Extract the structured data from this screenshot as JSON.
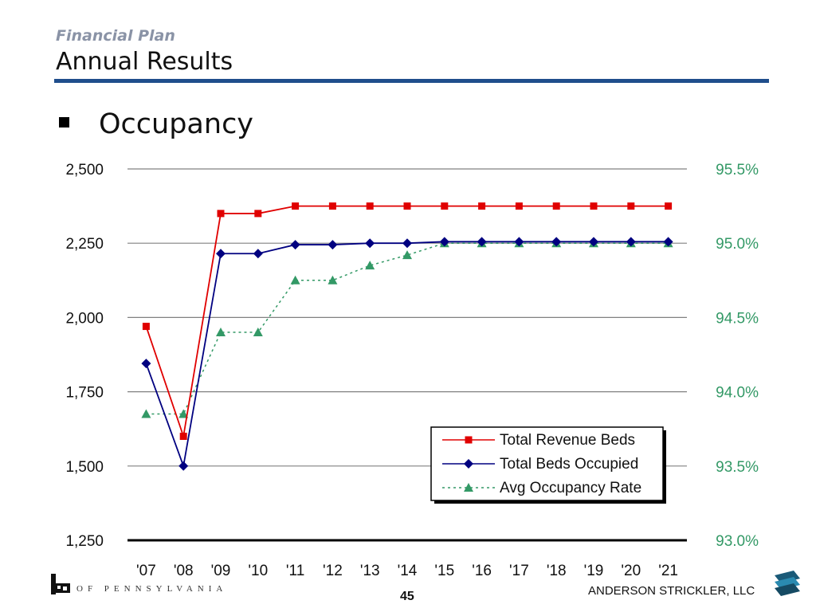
{
  "header": {
    "subtitle": "Financial Plan",
    "title": "Annual Results",
    "bullet_heading": "Occupancy"
  },
  "footer": {
    "left_text": "OF PENNSYLVANIA",
    "page_number": "45",
    "firm": "ANDERSON STRICKLER, LLC"
  },
  "colors": {
    "title_rule": "#1f4e8c",
    "revenue": "#e00000",
    "occupied": "#000080",
    "occupancy": "#339966",
    "right_axis_text": "#339966"
  },
  "chart_data": {
    "type": "line",
    "categories": [
      "'07",
      "'08",
      "'09",
      "'10",
      "'11",
      "'12",
      "'13",
      "'14",
      "'15",
      "'16",
      "'17",
      "'18",
      "'19",
      "'20",
      "'21"
    ],
    "y_left": {
      "min": 1250,
      "max": 2500,
      "ticks": [
        "2,500",
        "2,250",
        "2,000",
        "1,750",
        "1,500",
        "1,250"
      ]
    },
    "y_right": {
      "min": 93.0,
      "max": 95.5,
      "ticks": [
        "95.5%",
        "95.0%",
        "94.5%",
        "94.0%",
        "93.5%",
        "93.0%"
      ]
    },
    "grid": true,
    "legend_position": "bottom-right",
    "series": [
      {
        "name": "Total Revenue Beds",
        "axis": "left",
        "marker": "square",
        "style": "solid",
        "values": [
          1970,
          1600,
          2350,
          2350,
          2375,
          2375,
          2375,
          2375,
          2375,
          2375,
          2375,
          2375,
          2375,
          2375,
          2375
        ]
      },
      {
        "name": "Total Beds Occupied",
        "axis": "left",
        "marker": "diamond",
        "style": "solid",
        "values": [
          1845,
          1500,
          2215,
          2215,
          2245,
          2245,
          2250,
          2250,
          2255,
          2255,
          2255,
          2255,
          2255,
          2255,
          2255
        ]
      },
      {
        "name": "Avg Occupancy Rate",
        "axis": "right",
        "marker": "triangle",
        "style": "dotted",
        "values": [
          93.85,
          93.85,
          94.4,
          94.4,
          94.75,
          94.75,
          94.85,
          94.92,
          95.0,
          95.0,
          95.0,
          95.0,
          95.0,
          95.0,
          95.0
        ]
      }
    ]
  }
}
